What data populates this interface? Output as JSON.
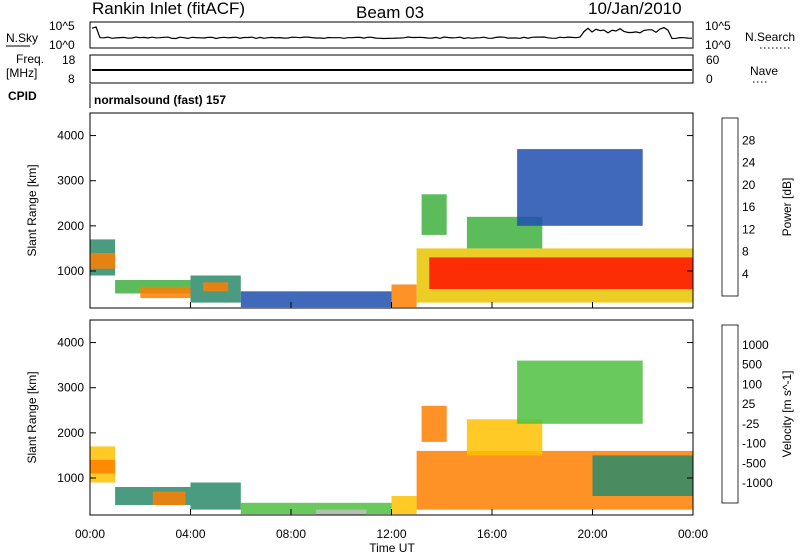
{
  "header": {
    "site": "Rankin Inlet (fitACF)",
    "beam": "Beam 03",
    "date": "10/Jan/2010"
  },
  "top_panels": {
    "nsky_label": "N.Sky",
    "nsky_ticks": [
      "10^5",
      "10^0"
    ],
    "nsearch_label": "N.Search",
    "nsearch_ticks": [
      "10^5",
      "10^0"
    ],
    "freq_label": "Freq.",
    "freq_unit": "[MHz]",
    "freq_ticks": [
      "18",
      "8"
    ],
    "nave_label": "Nave",
    "nave_ticks": [
      "60",
      "0"
    ],
    "cpid_label": "CPID",
    "cpid_text": "normalsound (fast) 157"
  },
  "chart_data": [
    {
      "type": "heatmap",
      "name": "power",
      "xlabel": "",
      "ylabel": "Slant Range [km]",
      "x_ticks": [
        "00:00",
        "04:00",
        "08:00",
        "12:00",
        "16:00",
        "20:00",
        "00:00"
      ],
      "y_ticks": [
        "1000",
        "2000",
        "3000",
        "4000"
      ],
      "xlim_hours": [
        0,
        24
      ],
      "ylim_km": [
        180,
        4500
      ],
      "colorbar": {
        "label": "Power [dB]",
        "ticks": [
          "28",
          "24",
          "20",
          "16",
          "12",
          "8",
          "4"
        ],
        "colors": [
          "#0018ff",
          "#1f4fb0",
          "#2a8a6a",
          "#40b040",
          "#e8c400",
          "#ff7f00",
          "#ff1000"
        ]
      },
      "regions": [
        {
          "t0": 0.0,
          "t1": 1.0,
          "r0": 900,
          "r1": 1700,
          "color": "#2a8a6a"
        },
        {
          "t0": 0.0,
          "t1": 1.0,
          "r0": 1050,
          "r1": 1400,
          "color": "#ff7f00"
        },
        {
          "t0": 1.0,
          "t1": 4.0,
          "r0": 500,
          "r1": 800,
          "color": "#40b040"
        },
        {
          "t0": 2.0,
          "t1": 4.0,
          "r0": 400,
          "r1": 650,
          "color": "#ff7f00"
        },
        {
          "t0": 4.0,
          "t1": 6.0,
          "r0": 300,
          "r1": 900,
          "color": "#2a8a6a"
        },
        {
          "t0": 4.5,
          "t1": 5.5,
          "r0": 550,
          "r1": 750,
          "color": "#ff7f00"
        },
        {
          "t0": 6.0,
          "t1": 12.0,
          "r0": 200,
          "r1": 550,
          "color": "#1f4fb0"
        },
        {
          "t0": 12.0,
          "t1": 13.0,
          "r0": 200,
          "r1": 700,
          "color": "#ff7f00"
        },
        {
          "t0": 13.0,
          "t1": 24.0,
          "r0": 300,
          "r1": 1500,
          "color": "#e8c400"
        },
        {
          "t0": 13.5,
          "t1": 24.0,
          "r0": 600,
          "r1": 1300,
          "color": "#ff1000"
        },
        {
          "t0": 13.2,
          "t1": 14.2,
          "r0": 1800,
          "r1": 2700,
          "color": "#40b040"
        },
        {
          "t0": 15.0,
          "t1": 18.0,
          "r0": 1500,
          "r1": 2200,
          "color": "#40b040"
        },
        {
          "t0": 17.0,
          "t1": 22.0,
          "r0": 2000,
          "r1": 3700,
          "color": "#1f4fb0"
        }
      ]
    },
    {
      "type": "heatmap",
      "name": "velocity",
      "xlabel": "Time UT",
      "ylabel": "Slant Range [km]",
      "x_ticks": [
        "00:00",
        "04:00",
        "08:00",
        "12:00",
        "16:00",
        "20:00",
        "00:00"
      ],
      "y_ticks": [
        "1000",
        "2000",
        "3000",
        "4000"
      ],
      "xlim_hours": [
        0,
        24
      ],
      "ylim_km": [
        180,
        4500
      ],
      "colorbar": {
        "label": "Velocity [m s^-1]",
        "ticks": [
          "1000",
          "500",
          "100",
          "25",
          "-25",
          "-100",
          "-500",
          "-1000"
        ],
        "colors": [
          "#1030c0",
          "#2a5aa0",
          "#2a8a6a",
          "#50c040",
          "#c0c0c0",
          "#ffc000",
          "#ff7f00",
          "#ff1000"
        ]
      },
      "regions": [
        {
          "t0": 0.0,
          "t1": 1.0,
          "r0": 900,
          "r1": 1700,
          "color": "#ffc000"
        },
        {
          "t0": 0.0,
          "t1": 1.0,
          "r0": 1100,
          "r1": 1400,
          "color": "#ff7f00"
        },
        {
          "t0": 1.0,
          "t1": 4.0,
          "r0": 400,
          "r1": 800,
          "color": "#2a8a6a"
        },
        {
          "t0": 2.5,
          "t1": 3.8,
          "r0": 400,
          "r1": 700,
          "color": "#ff7f00"
        },
        {
          "t0": 4.0,
          "t1": 6.0,
          "r0": 300,
          "r1": 900,
          "color": "#2a8a6a"
        },
        {
          "t0": 6.0,
          "t1": 12.0,
          "r0": 200,
          "r1": 450,
          "color": "#50c040"
        },
        {
          "t0": 9.0,
          "t1": 11.0,
          "r0": 180,
          "r1": 300,
          "color": "#c0c0c0"
        },
        {
          "t0": 12.0,
          "t1": 13.0,
          "r0": 200,
          "r1": 600,
          "color": "#ffc000"
        },
        {
          "t0": 13.0,
          "t1": 24.0,
          "r0": 300,
          "r1": 1600,
          "color": "#ff7f00"
        },
        {
          "t0": 20.0,
          "t1": 24.0,
          "r0": 600,
          "r1": 1500,
          "color": "#2a8a6a"
        },
        {
          "t0": 13.2,
          "t1": 14.2,
          "r0": 1800,
          "r1": 2600,
          "color": "#ff7f00"
        },
        {
          "t0": 15.0,
          "t1": 18.0,
          "r0": 1500,
          "r1": 2300,
          "color": "#ffc000"
        },
        {
          "t0": 17.0,
          "t1": 22.0,
          "r0": 2200,
          "r1": 3600,
          "color": "#50c040"
        }
      ]
    }
  ]
}
